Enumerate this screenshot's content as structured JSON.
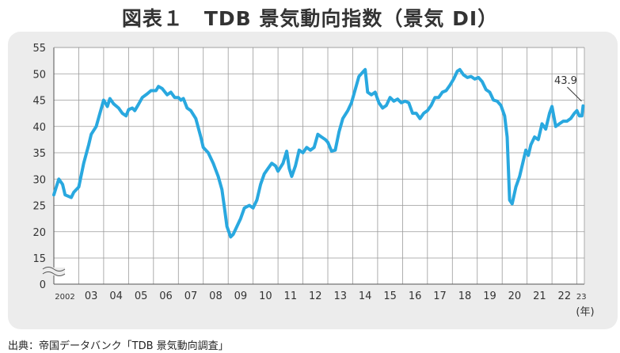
{
  "title": "図表１　TDB 景気動向指数（景気 DI）",
  "source": "出典：帝国データバンク「TDB 景気動向調査」",
  "chart_data": {
    "type": "line",
    "title": "図表１　TDB 景気動向指数（景気 DI）",
    "xlabel": "(年)",
    "ylabel": "",
    "ylim": [
      0,
      55
    ],
    "y_ticks": [
      "55",
      "50",
      "45",
      "40",
      "35",
      "30",
      "25",
      "20",
      "15",
      "0"
    ],
    "y_tick_values": [
      55,
      50,
      45,
      40,
      35,
      30,
      25,
      20,
      15,
      0
    ],
    "axis_break": true,
    "grid": true,
    "x_ticks": [
      "2002",
      "03",
      "04",
      "05",
      "06",
      "07",
      "08",
      "09",
      "10",
      "11",
      "12",
      "13",
      "14",
      "15",
      "16",
      "17",
      "18",
      "19",
      "20",
      "21",
      "22",
      "23"
    ],
    "x_unit": "(年)",
    "annotation": {
      "text": "43.9",
      "x": 2023.25,
      "y": 43.9
    },
    "series": [
      {
        "color": "#29a8df",
        "points": [
          [
            2002.0,
            27.0
          ],
          [
            2002.1,
            28.5
          ],
          [
            2002.2,
            30.0
          ],
          [
            2002.35,
            29.0
          ],
          [
            2002.45,
            27.0
          ],
          [
            2002.7,
            26.5
          ],
          [
            2002.8,
            27.5
          ],
          [
            2003.0,
            28.5
          ],
          [
            2003.2,
            33.0
          ],
          [
            2003.4,
            36.5
          ],
          [
            2003.5,
            38.5
          ],
          [
            2003.7,
            40.0
          ],
          [
            2003.85,
            42.5
          ],
          [
            2004.0,
            45.0
          ],
          [
            2004.15,
            43.8
          ],
          [
            2004.25,
            45.3
          ],
          [
            2004.4,
            44.3
          ],
          [
            2004.6,
            43.5
          ],
          [
            2004.75,
            42.5
          ],
          [
            2004.9,
            42.0
          ],
          [
            2005.0,
            43.2
          ],
          [
            2005.15,
            43.5
          ],
          [
            2005.25,
            43.0
          ],
          [
            2005.4,
            44.2
          ],
          [
            2005.55,
            45.5
          ],
          [
            2005.75,
            46.2
          ],
          [
            2005.9,
            46.8
          ],
          [
            2006.1,
            46.8
          ],
          [
            2006.2,
            47.6
          ],
          [
            2006.35,
            47.2
          ],
          [
            2006.55,
            46.0
          ],
          [
            2006.7,
            46.5
          ],
          [
            2006.85,
            45.5
          ],
          [
            2007.0,
            45.5
          ],
          [
            2007.1,
            45.0
          ],
          [
            2007.2,
            45.3
          ],
          [
            2007.35,
            43.5
          ],
          [
            2007.5,
            43.0
          ],
          [
            2007.7,
            41.5
          ],
          [
            2007.9,
            38.0
          ],
          [
            2008.0,
            36.0
          ],
          [
            2008.2,
            35.0
          ],
          [
            2008.4,
            33.0
          ],
          [
            2008.6,
            30.5
          ],
          [
            2008.75,
            28.0
          ],
          [
            2008.85,
            24.5
          ],
          [
            2008.95,
            21.0
          ],
          [
            2009.1,
            19.0
          ],
          [
            2009.2,
            19.5
          ],
          [
            2009.35,
            21.0
          ],
          [
            2009.5,
            22.5
          ],
          [
            2009.65,
            24.5
          ],
          [
            2009.85,
            25.0
          ],
          [
            2010.0,
            24.5
          ],
          [
            2010.15,
            26.0
          ],
          [
            2010.3,
            29.0
          ],
          [
            2010.45,
            31.0
          ],
          [
            2010.6,
            32.0
          ],
          [
            2010.75,
            33.0
          ],
          [
            2010.9,
            32.5
          ],
          [
            2011.0,
            31.5
          ],
          [
            2011.2,
            33.0
          ],
          [
            2011.35,
            35.3
          ],
          [
            2011.45,
            32.0
          ],
          [
            2011.55,
            30.5
          ],
          [
            2011.7,
            32.5
          ],
          [
            2011.85,
            35.5
          ],
          [
            2012.0,
            35.0
          ],
          [
            2012.15,
            36.0
          ],
          [
            2012.3,
            35.5
          ],
          [
            2012.45,
            36.0
          ],
          [
            2012.6,
            38.5
          ],
          [
            2012.75,
            38.0
          ],
          [
            2012.9,
            37.5
          ],
          [
            2013.0,
            37.0
          ],
          [
            2013.15,
            35.3
          ],
          [
            2013.3,
            35.5
          ],
          [
            2013.45,
            39.0
          ],
          [
            2013.6,
            41.5
          ],
          [
            2013.8,
            43.0
          ],
          [
            2013.95,
            44.5
          ],
          [
            2014.1,
            47.0
          ],
          [
            2014.25,
            49.5
          ],
          [
            2014.4,
            50.3
          ],
          [
            2014.5,
            50.8
          ],
          [
            2014.6,
            46.5
          ],
          [
            2014.75,
            46.0
          ],
          [
            2014.9,
            46.5
          ],
          [
            2015.05,
            44.5
          ],
          [
            2015.2,
            43.5
          ],
          [
            2015.35,
            44.0
          ],
          [
            2015.5,
            45.5
          ],
          [
            2015.65,
            44.8
          ],
          [
            2015.8,
            45.2
          ],
          [
            2015.95,
            44.5
          ],
          [
            2016.1,
            44.8
          ],
          [
            2016.25,
            44.5
          ],
          [
            2016.4,
            42.5
          ],
          [
            2016.55,
            42.5
          ],
          [
            2016.7,
            41.5
          ],
          [
            2016.85,
            42.5
          ],
          [
            2017.0,
            43.0
          ],
          [
            2017.15,
            44.0
          ],
          [
            2017.3,
            45.5
          ],
          [
            2017.45,
            45.5
          ],
          [
            2017.6,
            46.5
          ],
          [
            2017.75,
            46.8
          ],
          [
            2017.9,
            47.8
          ],
          [
            2018.05,
            49.0
          ],
          [
            2018.2,
            50.5
          ],
          [
            2018.3,
            50.8
          ],
          [
            2018.45,
            49.8
          ],
          [
            2018.6,
            49.3
          ],
          [
            2018.75,
            49.5
          ],
          [
            2018.9,
            49.0
          ],
          [
            2019.05,
            49.3
          ],
          [
            2019.2,
            48.5
          ],
          [
            2019.35,
            47.0
          ],
          [
            2019.5,
            46.5
          ],
          [
            2019.65,
            45.0
          ],
          [
            2019.8,
            44.8
          ],
          [
            2019.95,
            44.0
          ],
          [
            2020.1,
            42.0
          ],
          [
            2020.2,
            38.0
          ],
          [
            2020.3,
            26.0
          ],
          [
            2020.4,
            25.3
          ],
          [
            2020.55,
            28.5
          ],
          [
            2020.7,
            30.5
          ],
          [
            2020.85,
            33.5
          ],
          [
            2020.95,
            35.5
          ],
          [
            2021.05,
            34.5
          ],
          [
            2021.15,
            36.5
          ],
          [
            2021.3,
            38.0
          ],
          [
            2021.45,
            37.5
          ],
          [
            2021.6,
            40.5
          ],
          [
            2021.75,
            39.5
          ],
          [
            2021.9,
            42.5
          ],
          [
            2022.0,
            43.8
          ],
          [
            2022.15,
            40.0
          ],
          [
            2022.3,
            40.5
          ],
          [
            2022.45,
            41.0
          ],
          [
            2022.6,
            41.0
          ],
          [
            2022.75,
            41.5
          ],
          [
            2022.9,
            42.5
          ],
          [
            2023.0,
            43.0
          ],
          [
            2023.1,
            42.0
          ],
          [
            2023.2,
            42.0
          ],
          [
            2023.25,
            43.9
          ]
        ]
      }
    ]
  }
}
